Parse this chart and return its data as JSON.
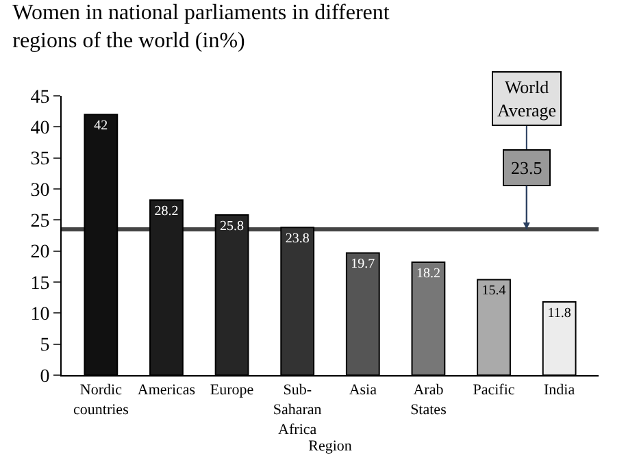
{
  "chart_data": {
    "type": "bar",
    "title": "Women in national parliaments in different regions of the world (in%)",
    "xlabel": "Region",
    "categories": [
      "Nordic countries",
      "Americas",
      "Europe",
      "Sub-Saharan Africa",
      "Asia",
      "Arab States",
      "Pacific",
      "India"
    ],
    "values": [
      42,
      28.2,
      25.8,
      23.8,
      19.7,
      18.2,
      15.4,
      11.8
    ],
    "colors": [
      "#111111",
      "#1c1c1c",
      "#262626",
      "#333333",
      "#555555",
      "#777777",
      "#aaaaaa",
      "#ececec"
    ],
    "data_labels": true,
    "ylim": [
      0,
      45
    ],
    "yticks": [
      0,
      5,
      10,
      15,
      20,
      25,
      30,
      35,
      40,
      45
    ],
    "ref_lines": [
      {
        "axis": "y",
        "value": 23.5,
        "label": "World Average",
        "color": "#444444"
      }
    ],
    "annotations": [
      {
        "text": "23.5",
        "y": 23.5
      }
    ],
    "legend": false
  }
}
